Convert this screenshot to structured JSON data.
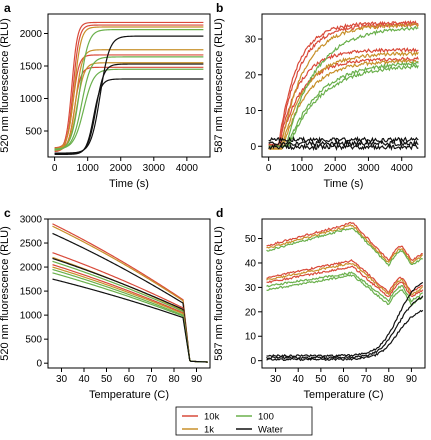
{
  "colors": {
    "10k": "#d94a3a",
    "1k": "#c8902a",
    "100": "#6ab04c",
    "Water": "#111111"
  },
  "legend": {
    "entries": [
      {
        "label": "10k",
        "color": "#d94a3a"
      },
      {
        "label": "100",
        "color": "#6ab04c"
      },
      {
        "label": "1k",
        "color": "#c8902a"
      },
      {
        "label": "Water",
        "color": "#111111"
      }
    ]
  },
  "chart_data": [
    {
      "panel": "a",
      "type": "line",
      "xlabel": "Time (s)",
      "ylabel": "520 nm fluorescence (RLU)",
      "xlim": [
        -200,
        4700
      ],
      "ylim": [
        100,
        2300
      ],
      "xticks": [
        0,
        1000,
        2000,
        3000,
        4000
      ],
      "yticks": [
        500,
        1000,
        1500,
        2000
      ],
      "kind": "kinetic",
      "series": [
        {
          "name": "10k",
          "base": 200,
          "plateau": 2170,
          "t_half": 520,
          "k": 85
        },
        {
          "name": "10k",
          "base": 180,
          "plateau": 2130,
          "t_half": 560,
          "k": 90
        },
        {
          "name": "10k",
          "base": 240,
          "plateau": 1670,
          "t_half": 560,
          "k": 90
        },
        {
          "name": "10k",
          "base": 200,
          "plateau": 1480,
          "t_half": 600,
          "k": 95
        },
        {
          "name": "1k",
          "base": 220,
          "plateau": 2100,
          "t_half": 600,
          "k": 100
        },
        {
          "name": "1k",
          "base": 200,
          "plateau": 1750,
          "t_half": 640,
          "k": 100
        },
        {
          "name": "1k",
          "base": 230,
          "plateau": 1550,
          "t_half": 680,
          "k": 110
        },
        {
          "name": "100",
          "base": 200,
          "plateau": 2060,
          "t_half": 760,
          "k": 130
        },
        {
          "name": "100",
          "base": 210,
          "plateau": 1640,
          "t_half": 820,
          "k": 140
        },
        {
          "name": "100",
          "base": 220,
          "plateau": 1450,
          "t_half": 880,
          "k": 150
        },
        {
          "name": "Water",
          "base": 160,
          "plateau": 1960,
          "t_half": 1380,
          "k": 140
        },
        {
          "name": "Water",
          "base": 150,
          "plateau": 1530,
          "t_half": 1250,
          "k": 120
        },
        {
          "name": "Water",
          "base": 140,
          "plateau": 1300,
          "t_half": 1180,
          "k": 110
        }
      ]
    },
    {
      "panel": "b",
      "type": "line",
      "xlabel": "Time (s)",
      "ylabel": "587 nm fluorescence (RLU)",
      "xlim": [
        -200,
        4700
      ],
      "ylim": [
        -3,
        37
      ],
      "xticks": [
        0,
        1000,
        2000,
        3000,
        4000
      ],
      "yticks": [
        0,
        10,
        20,
        30
      ],
      "kind": "rise",
      "series": [
        {
          "name": "10k",
          "base": 0.5,
          "plateau": 34.5,
          "t0": 300,
          "tau": 550
        },
        {
          "name": "10k",
          "base": 0.5,
          "plateau": 34.0,
          "t0": 320,
          "tau": 600
        },
        {
          "name": "10k",
          "base": 0.5,
          "plateau": 27.0,
          "t0": 320,
          "tau": 600
        },
        {
          "name": "10k",
          "base": 0.3,
          "plateau": 24.5,
          "t0": 350,
          "tau": 650
        },
        {
          "name": "1k",
          "base": 0.0,
          "plateau": 34.0,
          "t0": 380,
          "tau": 700
        },
        {
          "name": "1k",
          "base": -0.5,
          "plateau": 26.0,
          "t0": 400,
          "tau": 700
        },
        {
          "name": "1k",
          "base": -0.8,
          "plateau": 24.0,
          "t0": 420,
          "tau": 750
        },
        {
          "name": "100",
          "base": 0.0,
          "plateau": 33.5,
          "t0": 520,
          "tau": 900
        },
        {
          "name": "100",
          "base": 0.0,
          "plateau": 23.5,
          "t0": 560,
          "tau": 950
        },
        {
          "name": "100",
          "base": 0.0,
          "plateau": 22.8,
          "t0": 600,
          "tau": 1000
        },
        {
          "name": "Water",
          "flat": 1.8
        },
        {
          "name": "Water",
          "flat": 0.8
        },
        {
          "name": "Water",
          "flat": -0.2
        }
      ]
    },
    {
      "panel": "c",
      "type": "line",
      "xlabel": "Temperature (C)",
      "ylabel": "520 nm fluorescence (RLU)",
      "xlim": [
        24,
        96
      ],
      "ylim": [
        -100,
        3000
      ],
      "xticks": [
        30,
        40,
        50,
        60,
        70,
        80,
        90
      ],
      "yticks": [
        0,
        500,
        1000,
        1500,
        2000,
        2500,
        3000
      ],
      "kind": "melt",
      "series": [
        {
          "name": "10k",
          "start": 2900,
          "end84": 1320
        },
        {
          "name": "1k",
          "start": 2850,
          "end84": 1300
        },
        {
          "name": "Water",
          "start": 2700,
          "end84": 1250
        },
        {
          "name": "10k",
          "start": 2300,
          "end84": 1150
        },
        {
          "name": "1k",
          "start": 2200,
          "end84": 1100
        },
        {
          "name": "Water",
          "start": 2180,
          "end84": 1120
        },
        {
          "name": "100",
          "start": 2120,
          "end84": 1080
        },
        {
          "name": "10k",
          "start": 2050,
          "end84": 1050
        },
        {
          "name": "1k",
          "start": 2000,
          "end84": 1030
        },
        {
          "name": "100",
          "start": 1950,
          "end84": 1000
        },
        {
          "name": "100",
          "start": 1880,
          "end84": 980
        },
        {
          "name": "Water",
          "start": 1750,
          "end84": 950
        }
      ]
    },
    {
      "panel": "d",
      "type": "line",
      "xlabel": "Temperature (C)",
      "ylabel": "587 nm fluorescence (RLU)",
      "xlim": [
        24,
        96
      ],
      "ylim": [
        -3,
        58
      ],
      "xticks": [
        30,
        40,
        50,
        60,
        70,
        80,
        90
      ],
      "yticks": [
        0,
        10,
        20,
        30,
        40,
        50
      ],
      "kind": "dmelt",
      "series": [
        {
          "name": "10k",
          "level": 47,
          "peak": 56.5
        },
        {
          "name": "1k",
          "level": 46,
          "peak": 55.5
        },
        {
          "name": "100",
          "level": 45,
          "peak": 54.5
        },
        {
          "name": "10k",
          "level": 34,
          "peak": 41
        },
        {
          "name": "1k",
          "level": 33,
          "peak": 40
        },
        {
          "name": "10k",
          "level": 32,
          "peak": 38.5
        },
        {
          "name": "100",
          "level": 30.5,
          "peak": 36
        },
        {
          "name": "100",
          "level": 29,
          "peak": 35
        },
        {
          "name": "Water",
          "water": 2,
          "wend": 34
        },
        {
          "name": "Water",
          "water": 1.2,
          "wend": 28
        },
        {
          "name": "Water",
          "water": 0.5,
          "wend": 22
        }
      ]
    }
  ]
}
